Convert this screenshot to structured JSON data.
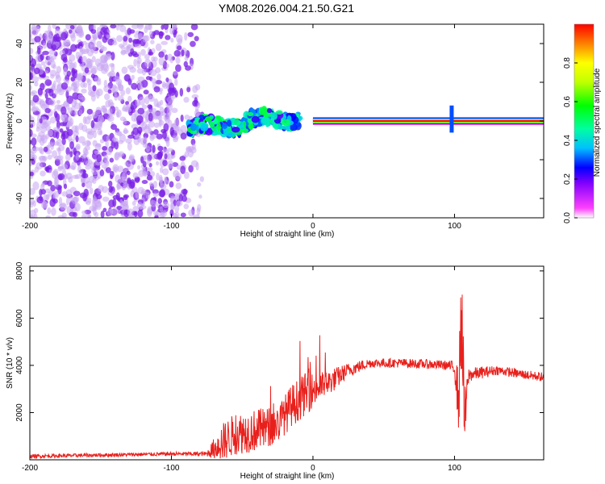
{
  "title": "YM08.2026.004.21.50.G21",
  "colors": {
    "spectrogram_low": "#8a2be2",
    "spectrogram_line": "#ff3030",
    "snr_line": "#e8201c",
    "axis": "#000000"
  },
  "chart_data": [
    {
      "type": "heatmap",
      "name": "spectrogram",
      "xlabel": "Height of straight line (km)",
      "ylabel": "Frequency (Hz)",
      "xlim": [
        -200,
        163
      ],
      "ylim": [
        -50,
        50
      ],
      "x_ticks": [
        -200,
        -100,
        0,
        100
      ],
      "x_tick_labels": [
        "-200",
        "-100",
        "0",
        "100"
      ],
      "y_ticks": [
        -40,
        -20,
        0,
        20,
        40
      ],
      "y_tick_labels": [
        "-40",
        "-20",
        "0",
        "20",
        "40"
      ],
      "colorbar": {
        "label": "Normalized spectral amplitude",
        "range": [
          0,
          1
        ],
        "ticks": [
          0.0,
          0.2,
          0.4,
          0.6,
          0.8
        ],
        "tick_labels": [
          "0.0",
          "0.2",
          "0.4",
          "0.6",
          "0.8"
        ],
        "colormap": "rainbow-with-white-to-purple-low-end"
      },
      "features": [
        {
          "name": "noise-region",
          "x_range": [
            -200,
            -78
          ],
          "freq_range": [
            -50,
            50
          ],
          "amplitude": 0.05
        },
        {
          "name": "transition-band",
          "x_range": [
            -88,
            -10
          ],
          "freq_center": [
            -5,
            3
          ],
          "amplitude": 0.25
        },
        {
          "name": "carrier-line",
          "x_range": [
            0,
            163
          ],
          "freq": 0,
          "amplitude": 1.0
        },
        {
          "name": "spike",
          "x": 98,
          "freq_range": [
            -6,
            8
          ],
          "amplitude": 0.3
        }
      ]
    },
    {
      "type": "line",
      "name": "snr",
      "xlabel": "Height of straight line (km)",
      "ylabel": "SNR (10 * v/v)",
      "xlim": [
        -200,
        163
      ],
      "ylim": [
        0,
        8200
      ],
      "x_ticks": [
        -200,
        -100,
        0,
        100
      ],
      "x_tick_labels": [
        "-200",
        "-100",
        "0",
        "100"
      ],
      "y_ticks": [
        2000,
        4000,
        6000,
        8000
      ],
      "y_tick_labels": [
        "2000",
        "4000",
        "6000",
        "8000"
      ],
      "series": [
        {
          "name": "SNR",
          "x": [
            -200,
            -150,
            -100,
            -75,
            -65,
            -55,
            -45,
            -35,
            -25,
            -15,
            -5,
            5,
            15,
            25,
            40,
            60,
            80,
            95,
            100,
            103,
            105,
            107,
            110,
            130,
            150,
            163
          ],
          "y": [
            150,
            200,
            250,
            250,
            700,
            1100,
            1200,
            1300,
            1500,
            2300,
            2800,
            3100,
            3400,
            3800,
            4100,
            4100,
            4050,
            4000,
            3900,
            2500,
            6500,
            1500,
            3600,
            3800,
            3600,
            3500
          ],
          "noise_amplitude": [
            80,
            80,
            80,
            100,
            800,
            900,
            900,
            900,
            800,
            900,
            900,
            600,
            500,
            300,
            200,
            200,
            200,
            200,
            300,
            1500,
            2500,
            1500,
            300,
            200,
            200,
            200
          ]
        }
      ]
    }
  ]
}
